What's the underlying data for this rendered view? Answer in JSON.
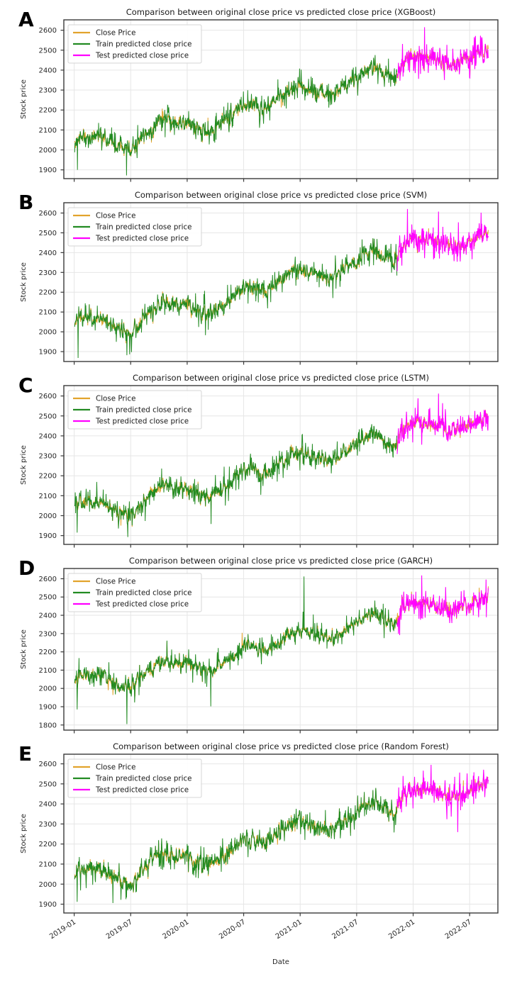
{
  "figure": {
    "background": "#ffffff",
    "panel_letters": [
      "A",
      "B",
      "C",
      "D",
      "E"
    ]
  },
  "chart_shared": {
    "legend": [
      "Close Price",
      "Train predicted close price",
      "Test predicted close price"
    ],
    "legend_position": "upper-left",
    "grid": true,
    "colors": {
      "close": "#E2A32C",
      "train": "#228B22",
      "test": "#FF00FF",
      "grid": "#e6e6e6",
      "frame": "#3a3a3a"
    },
    "x_axis": {
      "tick_labels": [
        "2019-01",
        "2019-07",
        "2020-01",
        "2020-07",
        "2021-01",
        "2021-07",
        "2022-01",
        "2022-07"
      ],
      "tick_months": [
        0,
        6,
        12,
        18,
        24,
        30,
        36,
        42
      ],
      "domain_months": [
        -1.1,
        45.0
      ],
      "data_start_month": 0.05,
      "data_end_month": 44.0
    },
    "train_test_split_month": 34.3,
    "trend_anchors": {
      "months": [
        0,
        1,
        2,
        3,
        4,
        5,
        6,
        7,
        8,
        9,
        10,
        11,
        12,
        13,
        14,
        15,
        16,
        17,
        18,
        19,
        20,
        21,
        22,
        23,
        24,
        25,
        26,
        27,
        28,
        29,
        30,
        31,
        32,
        33,
        34,
        35,
        36,
        37,
        38,
        39,
        40,
        41,
        42,
        43,
        44
      ],
      "values": [
        2040,
        2075,
        2065,
        2068,
        2035,
        2018,
        1998,
        2048,
        2105,
        2142,
        2150,
        2132,
        2140,
        2108,
        2090,
        2112,
        2140,
        2185,
        2228,
        2228,
        2202,
        2228,
        2268,
        2300,
        2318,
        2298,
        2288,
        2272,
        2292,
        2330,
        2360,
        2398,
        2415,
        2382,
        2352,
        2442,
        2475,
        2468,
        2462,
        2445,
        2430,
        2445,
        2455,
        2485,
        2505
      ]
    },
    "gen": {
      "step": 0.033,
      "close_ar": 0.5,
      "close_sigma": 15,
      "close_spike_p": 0.05,
      "close_spike_amp": 40,
      "pred_ar": 0.3,
      "pred_sigma": 11,
      "pred_spike_p": 0.09,
      "pred_spike_amp": 50,
      "test_ar": 0.35,
      "test_sigma": 17,
      "test_spike_p": 0.1,
      "test_spike_amp": 60
    }
  },
  "chart_data": [
    {
      "type": "line",
      "panel_label": "A",
      "model": "XGBoost",
      "title": "Comparison between original close price vs predicted close price (XGBoost)",
      "ylabel": "Stock price",
      "xlabel": "",
      "show_xtick_labels": false,
      "ytick_labels": [
        "1900",
        "2000",
        "2100",
        "2200",
        "2300",
        "2400",
        "2500",
        "2600"
      ],
      "ylim": [
        1856,
        2652
      ],
      "seed": 101,
      "spikes": [
        {
          "series": "train",
          "month": 0.35,
          "value": 1900
        },
        {
          "series": "train",
          "month": 5.55,
          "value": 1872
        },
        {
          "series": "test",
          "month": 37.2,
          "value": 2615
        }
      ]
    },
    {
      "type": "line",
      "panel_label": "B",
      "model": "SVM",
      "title": "Comparison between original close price vs predicted close price (SVM)",
      "ylabel": "Stock price",
      "xlabel": "",
      "show_xtick_labels": false,
      "ytick_labels": [
        "1900",
        "2000",
        "2100",
        "2200",
        "2300",
        "2400",
        "2500",
        "2600"
      ],
      "ylim": [
        1850,
        2652
      ],
      "seed": 202,
      "spikes": [
        {
          "series": "train",
          "month": 0.4,
          "value": 1868
        },
        {
          "series": "train",
          "month": 5.6,
          "value": 1882
        },
        {
          "series": "test",
          "month": 35.4,
          "value": 2620
        },
        {
          "series": "test",
          "month": 43.2,
          "value": 2602
        }
      ]
    },
    {
      "type": "line",
      "panel_label": "C",
      "model": "LSTM",
      "title": "Comparison between original close price vs predicted close price (LSTM)",
      "ylabel": "Stock price",
      "xlabel": "",
      "show_xtick_labels": false,
      "ytick_labels": [
        "1900",
        "2000",
        "2100",
        "2200",
        "2300",
        "2400",
        "2500",
        "2600"
      ],
      "ylim": [
        1856,
        2652
      ],
      "seed": 303,
      "spikes": [
        {
          "series": "train",
          "month": 0.3,
          "value": 1915
        },
        {
          "series": "train",
          "month": 5.7,
          "value": 1893
        },
        {
          "series": "test",
          "month": 38.7,
          "value": 2612
        }
      ]
    },
    {
      "type": "line",
      "panel_label": "D",
      "model": "GARCH",
      "title": "Comparison between original close price vs predicted close price (GARCH)",
      "ylabel": "Stock price",
      "xlabel": "",
      "show_xtick_labels": false,
      "ytick_labels": [
        "1800",
        "1900",
        "2000",
        "2100",
        "2200",
        "2300",
        "2400",
        "2500",
        "2600"
      ],
      "ylim": [
        1772,
        2656
      ],
      "seed": 404,
      "spikes": [
        {
          "series": "train",
          "month": 0.3,
          "value": 1885
        },
        {
          "series": "train",
          "month": 5.6,
          "value": 1805
        },
        {
          "series": "train",
          "month": 14.5,
          "value": 1902
        },
        {
          "series": "train",
          "month": 24.4,
          "value": 2612
        },
        {
          "series": "test",
          "month": 36.9,
          "value": 2618
        }
      ]
    },
    {
      "type": "line",
      "panel_label": "E",
      "model": "Random Forest",
      "title": "Comparison between original close price vs predicted close price (Random Forest)",
      "ylabel": "Stock price",
      "xlabel": "Date",
      "show_xtick_labels": true,
      "ytick_labels": [
        "1900",
        "2000",
        "2100",
        "2200",
        "2300",
        "2400",
        "2500",
        "2600"
      ],
      "ylim": [
        1856,
        2648
      ],
      "seed": 505,
      "spikes": [
        {
          "series": "train",
          "month": 0.3,
          "value": 1912
        },
        {
          "series": "train",
          "month": 5.5,
          "value": 1925
        },
        {
          "series": "test",
          "month": 37.9,
          "value": 2595
        }
      ]
    }
  ]
}
